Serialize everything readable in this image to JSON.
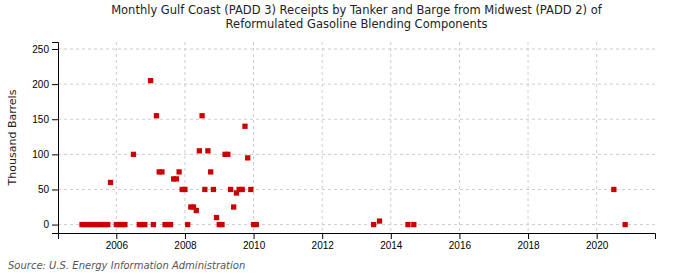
{
  "chart_data": {
    "type": "scatter",
    "title": "Monthly Gulf Coast (PADD 3) Receipts by Tanker and Barge from Midwest (PADD 2) of\nReformulated Gasoline Blending Components",
    "ylabel": "Thousand Barrels",
    "source": "Source: U.S. Energy Information Administration",
    "color": "#cc0000",
    "marker": "square",
    "grid": true,
    "xlim": [
      2004.3,
      2021.7
    ],
    "xticks": [
      2006,
      2008,
      2010,
      2012,
      2014,
      2016,
      2018,
      2020
    ],
    "ylim": [
      -12,
      260
    ],
    "yticks": [
      0,
      50,
      100,
      150,
      200,
      250
    ],
    "x": [
      2005.0,
      2005.08,
      2005.17,
      2005.25,
      2005.33,
      2005.42,
      2005.5,
      2005.58,
      2005.67,
      2005.75,
      2005.83,
      2006.0,
      2006.08,
      2006.17,
      2006.25,
      2006.5,
      2006.67,
      2006.75,
      2006.83,
      2007.0,
      2007.08,
      2007.17,
      2007.25,
      2007.33,
      2007.42,
      2007.5,
      2007.58,
      2007.67,
      2007.75,
      2007.83,
      2007.92,
      2008.0,
      2008.08,
      2008.17,
      2008.25,
      2008.33,
      2008.42,
      2008.5,
      2008.58,
      2008.67,
      2008.75,
      2008.83,
      2008.92,
      2009.0,
      2009.08,
      2009.17,
      2009.25,
      2009.33,
      2009.42,
      2009.5,
      2009.58,
      2009.67,
      2009.75,
      2009.83,
      2009.92,
      2010.0,
      2010.08,
      2013.5,
      2013.67,
      2014.5,
      2014.67,
      2020.5,
      2020.83
    ],
    "values": [
      0,
      0,
      0,
      0,
      0,
      0,
      0,
      0,
      0,
      0,
      60,
      0,
      0,
      0,
      0,
      100,
      0,
      0,
      0,
      205,
      0,
      155,
      75,
      75,
      0,
      0,
      0,
      65,
      65,
      75,
      50,
      50,
      0,
      25,
      25,
      20,
      105,
      155,
      50,
      105,
      75,
      50,
      10,
      0,
      0,
      100,
      100,
      50,
      25,
      45,
      50,
      50,
      140,
      95,
      50,
      0,
      0,
      0,
      5,
      0,
      0,
      50,
      0
    ]
  }
}
